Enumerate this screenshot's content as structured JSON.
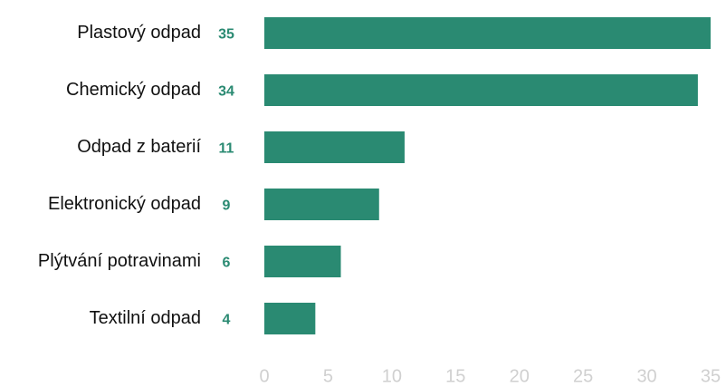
{
  "chart_data": {
    "type": "barh",
    "categories": [
      "Plastový odpad",
      "Chemický odpad",
      "Odpad z baterií",
      "Elektronický odpad",
      "Plýtvání potravinami",
      "Textilní odpad"
    ],
    "values": [
      35,
      34,
      11,
      9,
      6,
      4
    ],
    "color": "#2a8a72",
    "xlim": [
      0,
      35
    ],
    "xticks": [
      0,
      5,
      10,
      15,
      20,
      25,
      30,
      35
    ],
    "grid": false
  }
}
